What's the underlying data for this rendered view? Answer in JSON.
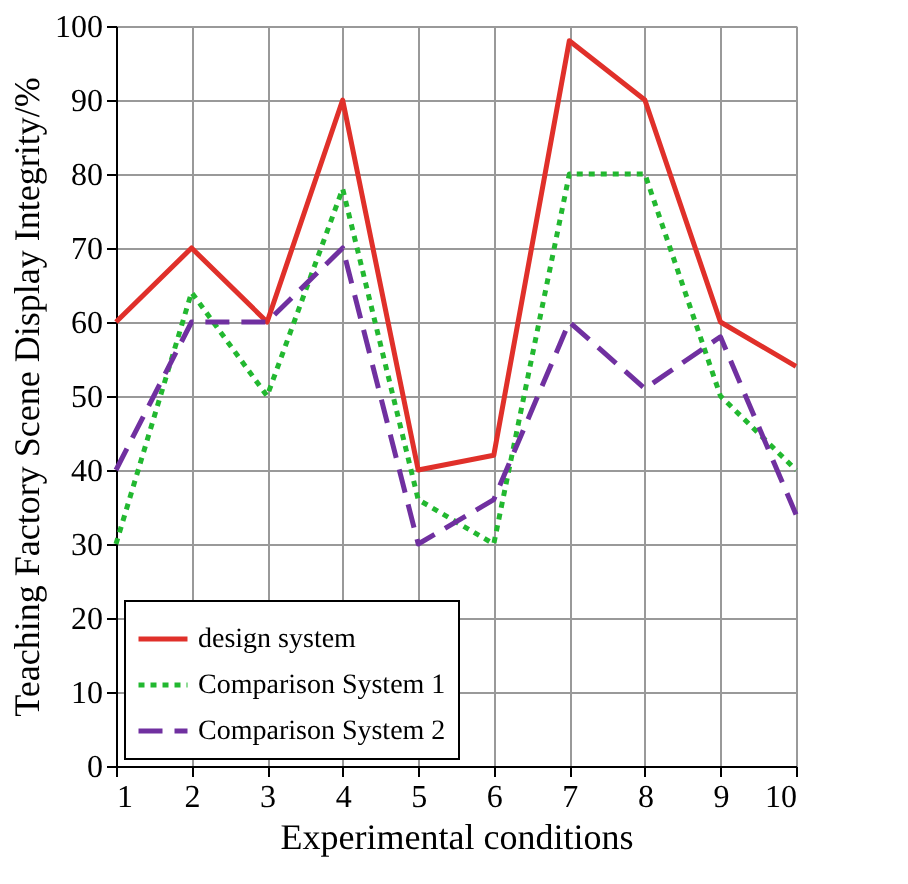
{
  "chart_data": {
    "type": "line",
    "xlabel": "Experimental conditions",
    "ylabel": "Teaching Factory Scene Display Integrity/%",
    "x": [
      1,
      2,
      3,
      4,
      5,
      6,
      7,
      8,
      9,
      10
    ],
    "xlim": [
      1,
      10
    ],
    "xticks": [
      1,
      2,
      3,
      4,
      5,
      6,
      7,
      8,
      9,
      10
    ],
    "ylim": [
      0,
      100
    ],
    "yticks": [
      0,
      10,
      20,
      30,
      40,
      50,
      60,
      70,
      80,
      90,
      100
    ],
    "grid": true,
    "legend": "bottom left",
    "marker": "none",
    "series": [
      {
        "name": "design system",
        "color": "#e0302a",
        "line_style": "solid",
        "values": [
          60,
          70,
          60,
          90,
          40,
          42,
          98,
          90,
          60,
          54
        ]
      },
      {
        "name": "Comparison System 1",
        "color": "#22b830",
        "line_style": "dotted",
        "values": [
          30,
          64,
          50,
          78,
          36,
          30,
          80,
          80,
          50,
          40
        ]
      },
      {
        "name": "Comparison System 2",
        "color": "#7030a0",
        "line_style": "dashed",
        "values": [
          40,
          60,
          60,
          70,
          30,
          36,
          60,
          51,
          58,
          34
        ]
      }
    ]
  }
}
